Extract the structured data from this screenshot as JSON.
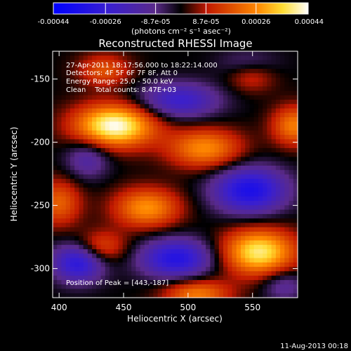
{
  "chart_data": {
    "type": "heatmap",
    "title": "Reconstructed RHESSI Image",
    "xlabel": "Heliocentric X (arcsec)",
    "ylabel": "Heliocentric Y (arcsec)",
    "xlim": [
      395,
      585
    ],
    "ylim": [
      -323,
      -128
    ],
    "x_ticks": [
      400,
      450,
      500,
      550
    ],
    "y_ticks": [
      -150,
      -200,
      -250,
      -300
    ],
    "colorbar": {
      "ticks": [
        "-0.00044",
        "-0.00026",
        "-8.7e-05",
        "8.7e-05",
        "0.00026",
        "0.00044"
      ],
      "tick_values": [
        -0.00044,
        -0.00026,
        -8.7e-05,
        8.7e-05,
        0.00026,
        0.00044
      ],
      "range": [
        -0.00044,
        0.00044
      ],
      "units_line": "(photons cm⁻² s⁻¹ asec⁻²)",
      "colors": [
        "#0000ff",
        "#5b2bb0",
        "#000000",
        "#c01800",
        "#ff8800",
        "#ffffff"
      ]
    },
    "annotations": [
      "27-Apr-2011 18:17:56.000 to 18:22:14.000",
      "Detectors: 4F 5F 6F 7F 8F, Att 0",
      "Energy Range: 25.0 - 50.0 keV",
      "Clean    Total counts: 8.47E+03"
    ],
    "peak_label": "Position of Peak = [443,-187]",
    "peak": [
      443,
      -187
    ],
    "sources": [
      {
        "x": 443,
        "y": -187,
        "amp": 1.0,
        "sx": 22,
        "sy": 12
      },
      {
        "x": 555,
        "y": -287,
        "amp": 0.88,
        "sx": 20,
        "sy": 13
      },
      {
        "x": 468,
        "y": -252,
        "amp": 0.62,
        "sx": 18,
        "sy": 11
      },
      {
        "x": 513,
        "y": -205,
        "amp": 0.6,
        "sx": 20,
        "sy": 11
      },
      {
        "x": 582,
        "y": -187,
        "amp": 0.55,
        "sx": 12,
        "sy": 11
      },
      {
        "x": 435,
        "y": -143,
        "amp": 0.4,
        "sx": 14,
        "sy": 9
      },
      {
        "x": 400,
        "y": -248,
        "amp": 0.45,
        "sx": 12,
        "sy": 13
      },
      {
        "x": 507,
        "y": -320,
        "amp": 0.55,
        "sx": 18,
        "sy": 8
      },
      {
        "x": 432,
        "y": -283,
        "amp": 0.42,
        "sx": 14,
        "sy": 9
      },
      {
        "x": 549,
        "y": -147,
        "amp": 0.3,
        "sx": 13,
        "sy": 9
      },
      {
        "x": 493,
        "y": -167,
        "amp": -0.55,
        "sx": 22,
        "sy": 10
      },
      {
        "x": 548,
        "y": -238,
        "amp": -0.78,
        "sx": 20,
        "sy": 13
      },
      {
        "x": 491,
        "y": -292,
        "amp": -0.72,
        "sx": 20,
        "sy": 11
      },
      {
        "x": 415,
        "y": -295,
        "amp": -0.7,
        "sx": 14,
        "sy": 11
      },
      {
        "x": 422,
        "y": -213,
        "amp": -0.35,
        "sx": 12,
        "sy": 11
      },
      {
        "x": 574,
        "y": -313,
        "amp": -0.3,
        "sx": 12,
        "sy": 9
      },
      {
        "x": 547,
        "y": -138,
        "amp": -0.25,
        "sx": 16,
        "sy": 8
      }
    ]
  },
  "footer": {
    "date_stamp": "11-Aug-2013 00:18"
  }
}
